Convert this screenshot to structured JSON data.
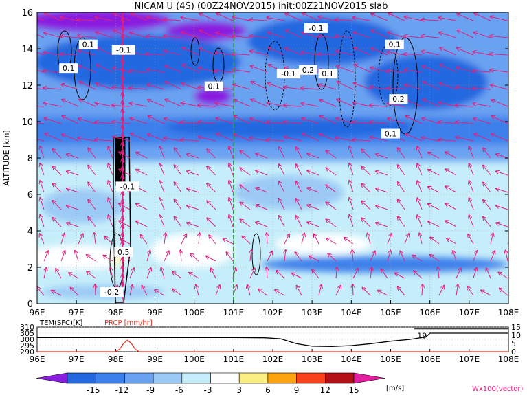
{
  "chart_data": [
    {
      "type": "heatmap",
      "title": "NICAM U (4S) (00Z24NOV2015) init:00Z21NOV2015 slab",
      "ylabel": "ALTITUDE [km]",
      "xlim": [
        96,
        108
      ],
      "ylim": [
        0,
        16
      ],
      "x_ticks": [
        "96E",
        "97E",
        "98E",
        "99E",
        "100E",
        "101E",
        "102E",
        "103E",
        "104E",
        "105E",
        "106E",
        "107E",
        "108E"
      ],
      "y_ticks": [
        "0",
        "2",
        "4",
        "6",
        "8",
        "10",
        "12",
        "14",
        "16"
      ],
      "grid": true,
      "reference_line_x": 101,
      "colors": {
        "reference_line": "#22aa22",
        "vectors": "#e0207e",
        "contours": "#000000"
      },
      "contour_labels": [
        {
          "text": "0.1",
          "x": 97.3,
          "y": 14.2
        },
        {
          "text": "0.1",
          "x": 96.8,
          "y": 12.9
        },
        {
          "text": "-0.1",
          "x": 98.2,
          "y": 13.9
        },
        {
          "text": "0.1",
          "x": 100.5,
          "y": 11.9
        },
        {
          "text": "-0.1",
          "x": 103.1,
          "y": 15.1
        },
        {
          "text": "-0.1",
          "x": 102.4,
          "y": 12.6
        },
        {
          "text": "0.2",
          "x": 102.9,
          "y": 12.8
        },
        {
          "text": "0.1",
          "x": 103.4,
          "y": 12.6
        },
        {
          "text": "0.1",
          "x": 105.1,
          "y": 14.2
        },
        {
          "text": "0.2",
          "x": 105.2,
          "y": 11.2
        },
        {
          "text": "0.1",
          "x": 105.0,
          "y": 9.3
        },
        {
          "text": "-0.1",
          "x": 98.3,
          "y": 6.4
        },
        {
          "text": "0.5",
          "x": 98.2,
          "y": 2.8
        },
        {
          "text": "-0.2",
          "x": 97.9,
          "y": 0.6
        }
      ]
    },
    {
      "type": "line",
      "xlim": [
        96,
        108
      ],
      "x_ticks": [
        "96E",
        "97E",
        "98E",
        "99E",
        "100E",
        "101E",
        "102E",
        "103E",
        "104E",
        "105E",
        "106E",
        "107E",
        "108E"
      ],
      "series": [
        {
          "name": "TEM(SFC)[K]",
          "color": "#000000",
          "axis": "left",
          "ylim": [
            290,
            310
          ],
          "y_ticks": [
            "310",
            "305",
            "300",
            "295",
            "290"
          ],
          "x": [
            96,
            97,
            98,
            99,
            100,
            101,
            101.8,
            102.2,
            102.6,
            103,
            103.5,
            104,
            104.5,
            105,
            105.5,
            105.9,
            106,
            107,
            108
          ],
          "values": [
            301.5,
            301.5,
            301.5,
            301.5,
            301.5,
            301.5,
            301.3,
            300.5,
            296.5,
            294.5,
            294.3,
            295,
            296.5,
            298.5,
            300,
            302,
            305,
            305,
            305
          ]
        },
        {
          "name": "PRCP [mm/hr]",
          "color": "#e83020",
          "axis": "right",
          "ylim": [
            0,
            15
          ],
          "y_ticks": [
            "15",
            "10",
            "5",
            "0"
          ],
          "x": [
            96,
            98.0,
            98.1,
            98.2,
            98.3,
            98.4,
            98.5,
            98.6,
            108
          ],
          "values": [
            0,
            0,
            1.5,
            5,
            7,
            5,
            1.5,
            0,
            0
          ]
        }
      ],
      "annotation": {
        "text": "19",
        "x": 105.8,
        "y": 303
      }
    },
    {
      "type": "colorbar",
      "unit": "[m/s]",
      "levels": [
        "-15",
        "-12",
        "-9",
        "-6",
        "-3",
        "3",
        "6",
        "9",
        "12",
        "15"
      ],
      "colors": [
        "#8a1ee0",
        "#2468e0",
        "#3c80ec",
        "#6aa2f2",
        "#9ccaf6",
        "#c6eefa",
        "#ffffff",
        "#fbee82",
        "#fca410",
        "#f8401a",
        "#b41018",
        "#e41ea0"
      ]
    }
  ],
  "legend_vector": "Wx100(vector)"
}
